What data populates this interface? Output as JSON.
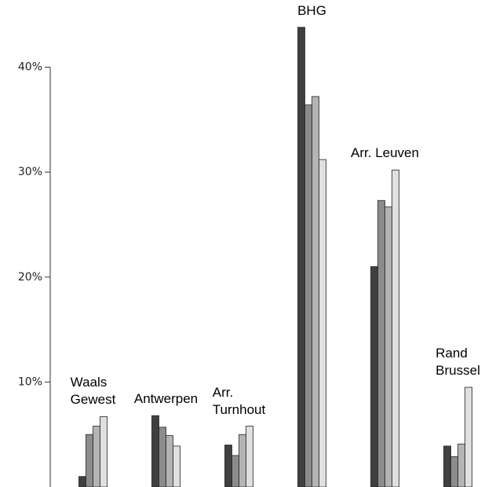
{
  "chart_data": {
    "type": "bar",
    "categories": [
      "Waals\nGewest",
      "Antwerpen",
      "Arr.\nTurnhout",
      "BHG",
      "Arr. Leuven",
      "Rand\nBrussel"
    ],
    "series": [
      {
        "color": "#404040",
        "values": [
          1.0,
          6.8,
          4.0,
          43.8,
          21.0,
          3.9
        ]
      },
      {
        "color": "#8c8c8c",
        "values": [
          5.0,
          5.7,
          3.0,
          36.4,
          27.3,
          2.9
        ]
      },
      {
        "color": "#b4b4b4",
        "values": [
          5.8,
          4.9,
          5.0,
          37.2,
          26.7,
          4.1
        ]
      },
      {
        "color": "#e0e0e0",
        "values": [
          6.7,
          3.9,
          5.8,
          31.2,
          30.2,
          9.5
        ]
      }
    ],
    "ylim": [
      0,
      46.4
    ],
    "yticks": [
      {
        "value": 10,
        "label": "10%"
      },
      {
        "value": 20,
        "label": "20%"
      },
      {
        "value": 30,
        "label": "30%"
      },
      {
        "value": 40,
        "label": "40%"
      }
    ],
    "grid": false
  }
}
